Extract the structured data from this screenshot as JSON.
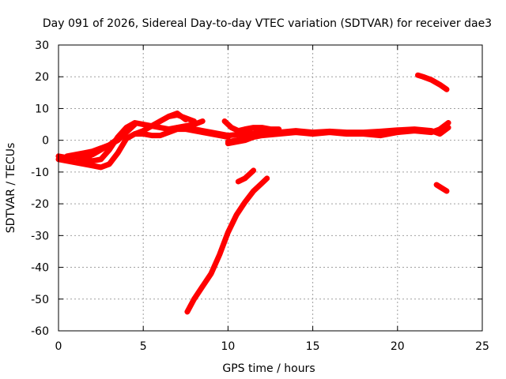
{
  "chart_data": {
    "type": "line",
    "title": "Day 091 of 2026, Sidereal Day-to-day VTEC variation (SDTVAR) for receiver dae3",
    "xlabel": "GPS time / hours",
    "ylabel": "SDTVAR / TECUs",
    "xlim": [
      0,
      25
    ],
    "ylim": [
      -60,
      30
    ],
    "xticks": [
      0,
      5,
      10,
      15,
      20,
      25
    ],
    "yticks": [
      -60,
      -50,
      -40,
      -30,
      -20,
      -10,
      0,
      10,
      20,
      30
    ],
    "xtick_labels": [
      "0",
      "5",
      "10",
      "15",
      "20",
      "25"
    ],
    "ytick_labels": [
      "-60",
      "-50",
      "-40",
      "-30",
      "-20",
      "-10",
      "0",
      "10",
      "20",
      "30"
    ],
    "grid": true,
    "legend": "none",
    "color": "#ff0000",
    "series": [
      {
        "x": [
          0.0,
          0.5,
          1.0,
          1.5,
          2.0,
          2.5,
          3.0,
          3.5,
          4.0,
          4.5,
          5.0,
          5.5,
          6.0,
          6.5,
          7.0,
          7.5,
          8.0,
          8.5
        ],
        "y": [
          -5.0,
          -5.5,
          -5.2,
          -6.0,
          -6.5,
          -6.0,
          -3.0,
          1.0,
          4.0,
          5.5,
          5.0,
          4.5,
          4.0,
          3.5,
          4.0,
          4.5,
          5.0,
          6.0
        ]
      },
      {
        "x": [
          0.0,
          0.5,
          1.0,
          1.5,
          2.0,
          2.5,
          3.0,
          3.5,
          4.0,
          4.5,
          5.0,
          5.5,
          6.0,
          6.5,
          7.0,
          7.5,
          8.0,
          8.5,
          9.0,
          9.5,
          10.0
        ],
        "y": [
          -6.0,
          -6.5,
          -7.0,
          -7.5,
          -8.0,
          -8.5,
          -7.5,
          -4.0,
          0.5,
          2.0,
          2.0,
          1.5,
          1.5,
          2.5,
          3.5,
          3.5,
          3.0,
          2.5,
          2.0,
          1.5,
          1.0
        ]
      },
      {
        "x": [
          0.5,
          1.0,
          1.5,
          2.0,
          2.5,
          3.0,
          3.5,
          4.0,
          4.5
        ],
        "y": [
          -5.0,
          -4.5,
          -4.0,
          -3.5,
          -2.5,
          -1.5,
          0.0,
          2.5,
          5.0
        ]
      },
      {
        "x": [
          1.5,
          2.0,
          2.5,
          3.0,
          3.5,
          4.0
        ],
        "y": [
          -5.5,
          -4.5,
          -3.0,
          -1.5,
          0.5,
          3.0
        ]
      },
      {
        "x": [
          4.5,
          5.0,
          5.5,
          6.0,
          6.5,
          7.0,
          7.5,
          8.0
        ],
        "y": [
          2.0,
          3.0,
          4.5,
          6.0,
          7.5,
          8.0,
          7.0,
          6.0
        ]
      },
      {
        "x": [
          5.5,
          6.0,
          6.5,
          7.0,
          7.5
        ],
        "y": [
          4.5,
          6.0,
          7.5,
          8.5,
          6.5
        ]
      },
      {
        "x": [
          7.0,
          8.0,
          9.0,
          10.0,
          11.0,
          12.0,
          13.0,
          14.0,
          15.0,
          16.0,
          17.0,
          18.0,
          19.0,
          20.0,
          21.0,
          22.0,
          22.5,
          23.0
        ],
        "y": [
          4.0,
          3.5,
          2.5,
          1.5,
          2.0,
          2.5,
          2.5,
          3.0,
          2.5,
          2.8,
          2.5,
          2.5,
          2.8,
          3.2,
          3.5,
          3.0,
          2.0,
          4.0
        ]
      },
      {
        "x": [
          10.0,
          11.0,
          12.0,
          13.0,
          14.0,
          15.0,
          16.0,
          17.0,
          18.0,
          19.0,
          20.0,
          21.0,
          22.0,
          22.5,
          23.0
        ],
        "y": [
          -0.5,
          0.5,
          1.5,
          2.0,
          2.5,
          2.0,
          2.5,
          2.0,
          2.0,
          1.5,
          2.5,
          3.0,
          2.5,
          3.5,
          5.5
        ]
      },
      {
        "x": [
          10.0,
          10.5,
          11.0,
          11.5,
          12.0,
          12.5,
          13.0
        ],
        "y": [
          -1.0,
          -0.5,
          0.0,
          1.0,
          2.0,
          2.5,
          3.0
        ]
      },
      {
        "x": [
          9.8,
          10.2,
          10.6,
          11.0,
          11.5,
          12.0,
          12.5,
          13.0
        ],
        "y": [
          6.0,
          4.0,
          3.0,
          3.5,
          4.0,
          4.0,
          3.5,
          3.5
        ]
      },
      {
        "x": [
          10.6,
          11.0,
          11.5
        ],
        "y": [
          -13.0,
          -12.0,
          -9.5
        ]
      },
      {
        "x": [
          7.6,
          8.0,
          8.5,
          9.0,
          9.5,
          10.0,
          10.5,
          11.0,
          11.5,
          12.0,
          12.3
        ],
        "y": [
          -54.0,
          -50.0,
          -46.0,
          -42.0,
          -36.0,
          -29.0,
          -23.5,
          -19.5,
          -16.0,
          -13.5,
          -12.0
        ]
      },
      {
        "x": [
          21.2,
          21.5,
          22.0,
          22.5,
          22.9
        ],
        "y": [
          20.5,
          20.0,
          19.0,
          17.5,
          16.0
        ]
      },
      {
        "x": [
          22.3,
          22.6,
          22.9
        ],
        "y": [
          -14.0,
          -15.0,
          -16.0
        ]
      }
    ]
  }
}
